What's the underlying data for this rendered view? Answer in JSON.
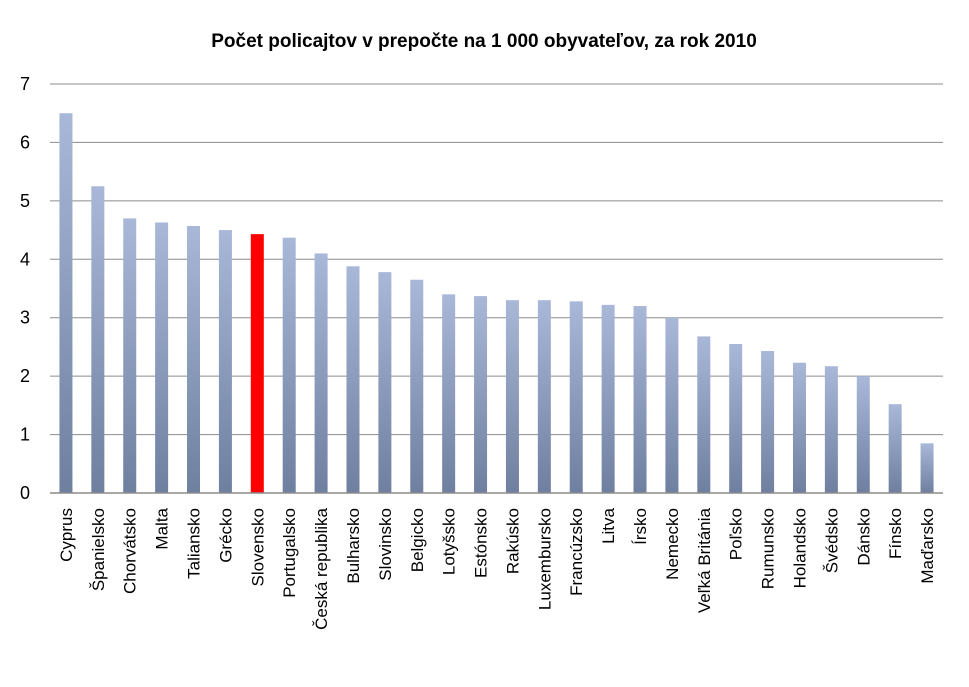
{
  "chart_data": {
    "type": "bar",
    "title": "Počet policajtov  v prepočte na 1 000 obyvateľov, za rok 2010",
    "xlabel": "",
    "ylabel": "",
    "ylim": [
      0,
      7
    ],
    "yticks": [
      0,
      1,
      2,
      3,
      4,
      5,
      6,
      7
    ],
    "grid": true,
    "legend": "none",
    "highlight_category": "Slovensko",
    "colors": {
      "bar_top": "#a9b8d8",
      "bar_bottom": "#6f7f9f",
      "highlight": "#ff0000",
      "grid": "#8c8c8c"
    },
    "categories": [
      "Cyprus",
      "Španielsko",
      "Chorvátsko",
      "Malta",
      "Taliansko",
      "Grécko",
      "Slovensko",
      "Portugalsko",
      "Česká republika",
      "Bulharsko",
      "Slovinsko",
      "Belgicko",
      "Lotyšsko",
      "Estónsko",
      "Rakúsko",
      "Luxembursko",
      "Francúzsko",
      "Litva",
      "Írsko",
      "Nemecko",
      "Veľká Británia",
      "Poľsko",
      "Rumunsko",
      "Holandsko",
      "Švédsko",
      "Dánsko",
      "Fínsko",
      "Maďarsko"
    ],
    "values": [
      6.5,
      5.25,
      4.7,
      4.63,
      4.57,
      4.5,
      4.43,
      4.37,
      4.1,
      3.88,
      3.78,
      3.65,
      3.4,
      3.37,
      3.3,
      3.3,
      3.28,
      3.22,
      3.2,
      3.0,
      2.68,
      2.55,
      2.43,
      2.23,
      2.17,
      2.0,
      1.52,
      0.85
    ]
  }
}
